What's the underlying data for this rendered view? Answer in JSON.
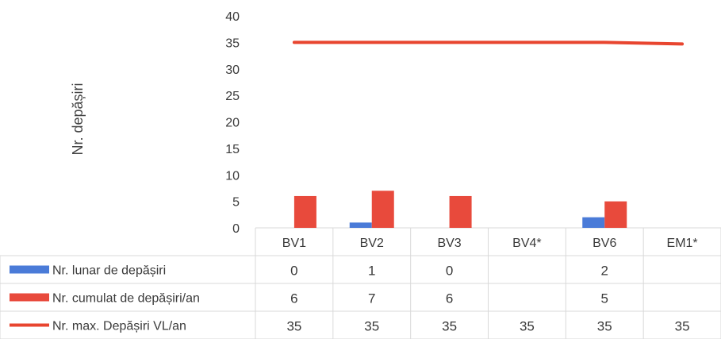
{
  "chart_data": {
    "type": "bar",
    "ylabel": "Nr. depășiri",
    "ylim": [
      0,
      40
    ],
    "yticks": [
      "0",
      "5",
      "10",
      "15",
      "20",
      "25",
      "30",
      "35",
      "40"
    ],
    "categories": [
      "BV1",
      "BV2",
      "BV3",
      "BV4*",
      "BV6",
      "EM1*"
    ],
    "series": [
      {
        "name": "Nr. lunar de depășiri",
        "kind": "bar",
        "color": "#4a7bd8",
        "values": [
          0,
          1,
          0,
          null,
          2,
          null
        ],
        "labels": [
          "0",
          "1",
          "0",
          "",
          "2",
          ""
        ]
      },
      {
        "name": "Nr. cumulat de depășiri/an",
        "kind": "bar",
        "color": "#e84a3c",
        "values": [
          6,
          7,
          6,
          null,
          5,
          null
        ],
        "labels": [
          "6",
          "7",
          "6",
          "",
          "5",
          ""
        ]
      },
      {
        "name": "Nr. max. Depășiri VL/an",
        "kind": "line",
        "color": "#e8452f",
        "values": [
          35,
          35,
          35,
          35,
          35,
          35
        ],
        "labels": [
          "35",
          "35",
          "35",
          "35",
          "35",
          "35"
        ]
      }
    ],
    "legend": "data-table",
    "grid": false
  }
}
